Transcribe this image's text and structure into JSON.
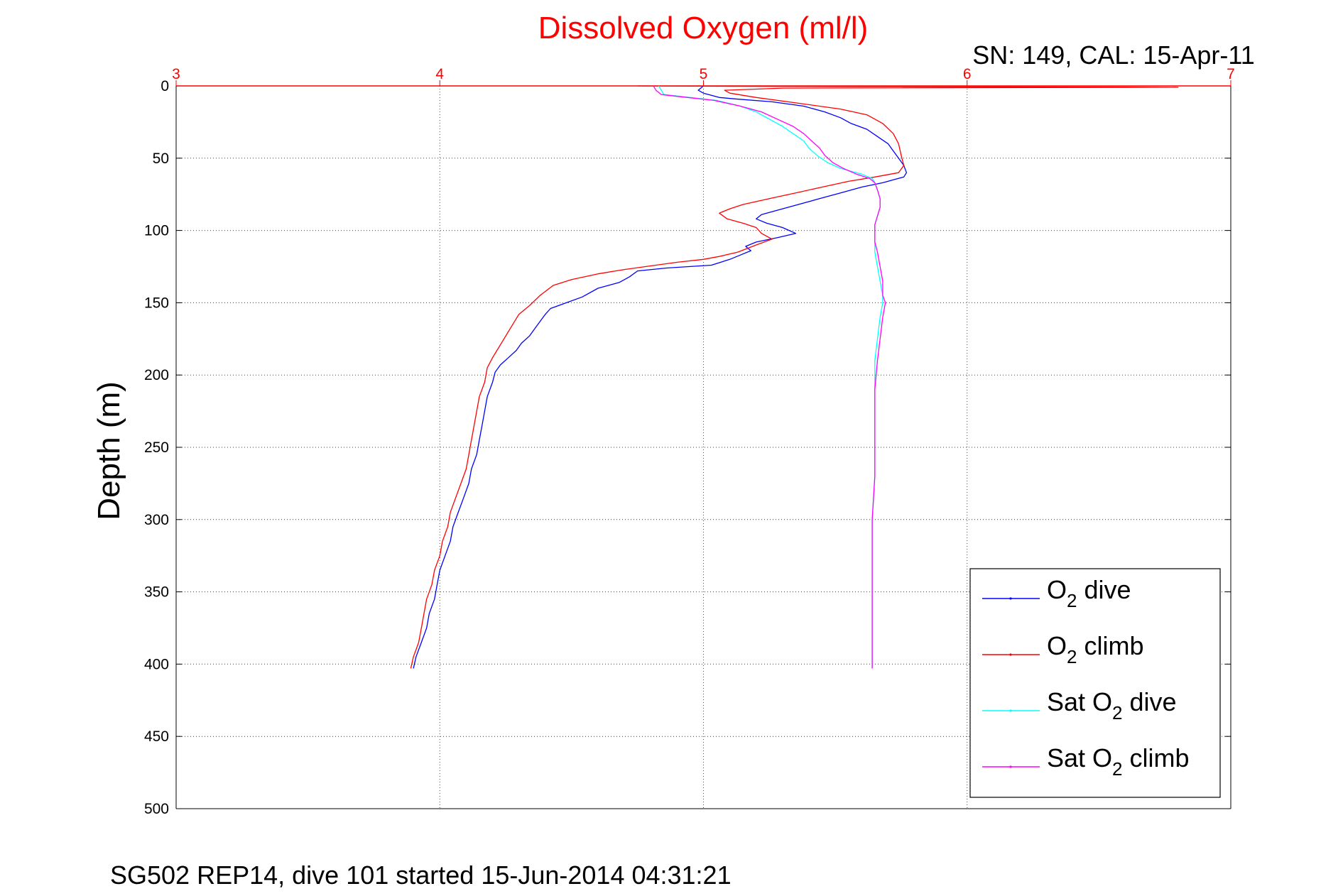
{
  "chart_data": {
    "type": "line",
    "title": "Dissolved Oxygen (ml/l)",
    "subtitle": "SN: 149, CAL: 15-Apr-11",
    "ylabel": "Depth (m)",
    "footer": "SG502 REP14, dive 101 started 15-Jun-2014 04:31:21",
    "xlim": [
      3,
      7
    ],
    "ylim": [
      0,
      500
    ],
    "y_reversed": true,
    "x_axis_position": "top",
    "x_ticks": [
      "3",
      "4",
      "5",
      "6",
      "7"
    ],
    "y_ticks": [
      "0",
      "50",
      "100",
      "150",
      "200",
      "250",
      "300",
      "350",
      "400",
      "450",
      "500"
    ],
    "grid": true,
    "legend_position": "bottom-right",
    "colors": {
      "axis_top": "#ff0000",
      "title": "#ff0000",
      "grid_x": "#ff0000",
      "grid_y": "#444444"
    },
    "series": [
      {
        "name": "O2 dive",
        "legend_main": "O",
        "legend_sub": "2",
        "legend_tail": " dive",
        "color": "#0000ff",
        "points": [
          [
            5.0,
            0
          ],
          [
            4.98,
            3
          ],
          [
            5.0,
            5
          ],
          [
            5.06,
            8
          ],
          [
            5.12,
            9
          ],
          [
            5.26,
            11
          ],
          [
            5.38,
            14
          ],
          [
            5.46,
            18
          ],
          [
            5.52,
            22
          ],
          [
            5.56,
            26
          ],
          [
            5.62,
            30
          ],
          [
            5.66,
            35
          ],
          [
            5.7,
            40
          ],
          [
            5.72,
            45
          ],
          [
            5.74,
            50
          ],
          [
            5.76,
            55
          ],
          [
            5.77,
            60
          ],
          [
            5.76,
            63
          ],
          [
            5.72,
            65
          ],
          [
            5.68,
            67
          ],
          [
            5.6,
            70
          ],
          [
            5.52,
            74
          ],
          [
            5.44,
            78
          ],
          [
            5.36,
            82
          ],
          [
            5.28,
            86
          ],
          [
            5.22,
            89
          ],
          [
            5.2,
            92
          ],
          [
            5.24,
            95
          ],
          [
            5.3,
            98
          ],
          [
            5.35,
            102
          ],
          [
            5.28,
            105
          ],
          [
            5.2,
            108
          ],
          [
            5.16,
            111
          ],
          [
            5.18,
            114
          ],
          [
            5.14,
            117
          ],
          [
            5.1,
            120
          ],
          [
            5.03,
            124
          ],
          [
            4.86,
            126
          ],
          [
            4.75,
            128
          ],
          [
            4.72,
            132
          ],
          [
            4.68,
            136
          ],
          [
            4.6,
            140
          ],
          [
            4.54,
            146
          ],
          [
            4.48,
            150
          ],
          [
            4.42,
            154
          ],
          [
            4.4,
            158
          ],
          [
            4.38,
            163
          ],
          [
            4.36,
            168
          ],
          [
            4.34,
            173
          ],
          [
            4.31,
            178
          ],
          [
            4.29,
            183
          ],
          [
            4.26,
            188
          ],
          [
            4.23,
            193
          ],
          [
            4.21,
            198
          ],
          [
            4.2,
            205
          ],
          [
            4.18,
            215
          ],
          [
            4.17,
            225
          ],
          [
            4.16,
            235
          ],
          [
            4.15,
            245
          ],
          [
            4.14,
            255
          ],
          [
            4.12,
            265
          ],
          [
            4.11,
            275
          ],
          [
            4.09,
            285
          ],
          [
            4.07,
            295
          ],
          [
            4.05,
            305
          ],
          [
            4.04,
            315
          ],
          [
            4.02,
            325
          ],
          [
            4.0,
            335
          ],
          [
            3.99,
            345
          ],
          [
            3.98,
            355
          ],
          [
            3.96,
            365
          ],
          [
            3.95,
            375
          ],
          [
            3.93,
            385
          ],
          [
            3.91,
            395
          ],
          [
            3.9,
            403
          ]
        ]
      },
      {
        "name": "O2 climb",
        "legend_main": "O",
        "legend_sub": "2",
        "legend_tail": " climb",
        "color": "#ff0000",
        "points": [
          [
            4.75,
            0
          ],
          [
            5.5,
            0.5
          ],
          [
            6.6,
            0.8
          ],
          [
            6.8,
            1
          ],
          [
            5.3,
            1.5
          ],
          [
            5.08,
            3
          ],
          [
            5.1,
            5
          ],
          [
            5.2,
            8
          ],
          [
            5.36,
            12
          ],
          [
            5.52,
            16
          ],
          [
            5.62,
            20
          ],
          [
            5.68,
            26
          ],
          [
            5.72,
            33
          ],
          [
            5.74,
            40
          ],
          [
            5.75,
            48
          ],
          [
            5.76,
            55
          ],
          [
            5.74,
            60
          ],
          [
            5.65,
            63
          ],
          [
            5.55,
            66
          ],
          [
            5.45,
            70
          ],
          [
            5.35,
            74
          ],
          [
            5.25,
            78
          ],
          [
            5.15,
            82
          ],
          [
            5.1,
            85
          ],
          [
            5.06,
            88
          ],
          [
            5.09,
            92
          ],
          [
            5.15,
            95
          ],
          [
            5.2,
            98
          ],
          [
            5.22,
            102
          ],
          [
            5.26,
            106
          ],
          [
            5.2,
            110
          ],
          [
            5.13,
            115
          ],
          [
            5.06,
            118
          ],
          [
            5.0,
            120
          ],
          [
            4.9,
            122
          ],
          [
            4.78,
            125
          ],
          [
            4.7,
            127
          ],
          [
            4.6,
            130
          ],
          [
            4.5,
            134
          ],
          [
            4.43,
            138
          ],
          [
            4.38,
            145
          ],
          [
            4.34,
            152
          ],
          [
            4.3,
            158
          ],
          [
            4.28,
            164
          ],
          [
            4.26,
            170
          ],
          [
            4.24,
            176
          ],
          [
            4.22,
            182
          ],
          [
            4.2,
            188
          ],
          [
            4.18,
            195
          ],
          [
            4.17,
            205
          ],
          [
            4.15,
            215
          ],
          [
            4.14,
            225
          ],
          [
            4.13,
            235
          ],
          [
            4.12,
            245
          ],
          [
            4.11,
            255
          ],
          [
            4.1,
            265
          ],
          [
            4.08,
            275
          ],
          [
            4.06,
            285
          ],
          [
            4.04,
            295
          ],
          [
            4.03,
            305
          ],
          [
            4.01,
            315
          ],
          [
            4.0,
            325
          ],
          [
            3.98,
            335
          ],
          [
            3.97,
            345
          ],
          [
            3.95,
            355
          ],
          [
            3.94,
            365
          ],
          [
            3.93,
            375
          ],
          [
            3.92,
            385
          ],
          [
            3.9,
            395
          ],
          [
            3.89,
            403
          ]
        ]
      },
      {
        "name": "Sat O2 dive",
        "legend_main": "Sat O",
        "legend_sub": "2",
        "legend_tail": " dive",
        "color": "#00ffff",
        "points": [
          [
            4.83,
            0
          ],
          [
            4.84,
            3
          ],
          [
            4.85,
            6
          ],
          [
            4.95,
            8
          ],
          [
            5.05,
            10
          ],
          [
            5.14,
            14
          ],
          [
            5.2,
            18
          ],
          [
            5.25,
            23
          ],
          [
            5.3,
            28
          ],
          [
            5.34,
            33
          ],
          [
            5.38,
            38
          ],
          [
            5.4,
            43
          ],
          [
            5.43,
            48
          ],
          [
            5.47,
            53
          ],
          [
            5.52,
            57
          ],
          [
            5.6,
            61
          ],
          [
            5.64,
            64
          ],
          [
            5.65,
            67
          ],
          [
            5.66,
            72
          ],
          [
            5.67,
            78
          ],
          [
            5.67,
            84
          ],
          [
            5.66,
            90
          ],
          [
            5.65,
            96
          ],
          [
            5.65,
            102
          ],
          [
            5.65,
            108
          ],
          [
            5.65,
            115
          ],
          [
            5.66,
            125
          ],
          [
            5.67,
            135
          ],
          [
            5.68,
            145
          ],
          [
            5.68,
            150
          ],
          [
            5.67,
            160
          ],
          [
            5.66,
            175
          ],
          [
            5.65,
            190
          ],
          [
            5.65,
            210
          ],
          [
            5.65,
            240
          ],
          [
            5.65,
            270
          ],
          [
            5.64,
            300
          ],
          [
            5.64,
            330
          ],
          [
            5.64,
            360
          ],
          [
            5.64,
            390
          ],
          [
            5.64,
            403
          ]
        ]
      },
      {
        "name": "Sat O2 climb",
        "legend_main": "Sat O",
        "legend_sub": "2",
        "legend_tail": " climb",
        "color": "#ff00ff",
        "points": [
          [
            4.81,
            0
          ],
          [
            4.82,
            3
          ],
          [
            4.84,
            6
          ],
          [
            4.94,
            8
          ],
          [
            5.04,
            10
          ],
          [
            5.14,
            14
          ],
          [
            5.22,
            18
          ],
          [
            5.28,
            23
          ],
          [
            5.34,
            28
          ],
          [
            5.38,
            33
          ],
          [
            5.41,
            38
          ],
          [
            5.44,
            43
          ],
          [
            5.46,
            48
          ],
          [
            5.49,
            53
          ],
          [
            5.53,
            57
          ],
          [
            5.58,
            61
          ],
          [
            5.63,
            64
          ],
          [
            5.65,
            67
          ],
          [
            5.66,
            72
          ],
          [
            5.67,
            78
          ],
          [
            5.67,
            84
          ],
          [
            5.66,
            90
          ],
          [
            5.65,
            96
          ],
          [
            5.65,
            102
          ],
          [
            5.65,
            108
          ],
          [
            5.66,
            115
          ],
          [
            5.67,
            125
          ],
          [
            5.68,
            135
          ],
          [
            5.68,
            145
          ],
          [
            5.69,
            150
          ],
          [
            5.68,
            160
          ],
          [
            5.67,
            175
          ],
          [
            5.66,
            190
          ],
          [
            5.65,
            210
          ],
          [
            5.65,
            240
          ],
          [
            5.65,
            270
          ],
          [
            5.64,
            300
          ],
          [
            5.64,
            330
          ],
          [
            5.64,
            360
          ],
          [
            5.64,
            390
          ],
          [
            5.64,
            403
          ]
        ]
      }
    ]
  }
}
